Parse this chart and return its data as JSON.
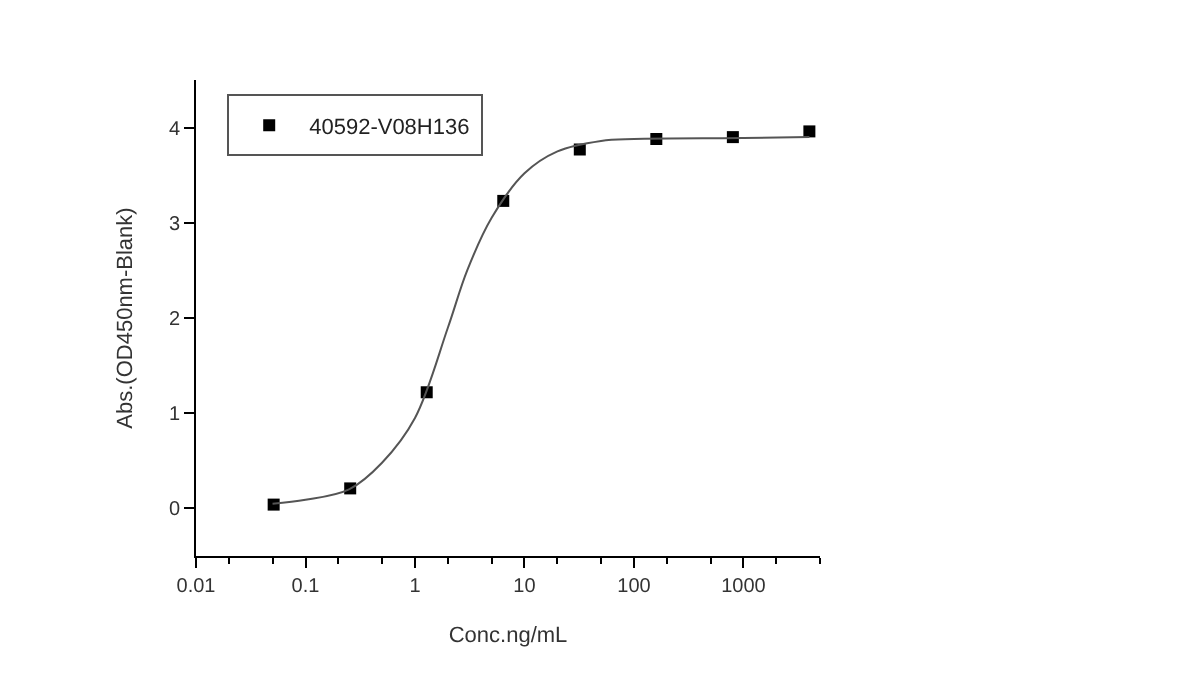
{
  "chart_data": {
    "type": "scatter",
    "xlabel": "Conc.ng/mL",
    "ylabel": "Abs.(OD450nm-Blank)",
    "log": "x",
    "legend": "top left",
    "marker": "square",
    "xlim": [
      0.01,
      5000
    ],
    "xticks": [
      0.01,
      0.1,
      1,
      10,
      100,
      1000
    ],
    "ylim": [
      -0.5,
      4.5
    ],
    "yticks": [
      0,
      1,
      2,
      3,
      4
    ],
    "series": [
      {
        "name": "40592-V08H136",
        "color": "#000000",
        "x": [
          0.0512,
          0.256,
          1.28,
          6.4,
          32,
          160,
          800,
          4000
        ],
        "values": [
          0.04,
          0.21,
          1.22,
          3.23,
          3.77,
          3.88,
          3.9,
          3.96
        ]
      },
      {
        "type": "line",
        "marker": "none",
        "color": "#555555",
        "x": [
          0.05,
          0.1,
          0.25,
          0.5,
          1,
          2,
          3,
          5,
          10,
          20,
          50,
          100,
          1000,
          4000
        ],
        "values": [
          0.05,
          0.09,
          0.2,
          0.48,
          0.95,
          1.9,
          2.5,
          3.05,
          3.52,
          3.75,
          3.86,
          3.88,
          3.89,
          3.9
        ]
      }
    ]
  }
}
